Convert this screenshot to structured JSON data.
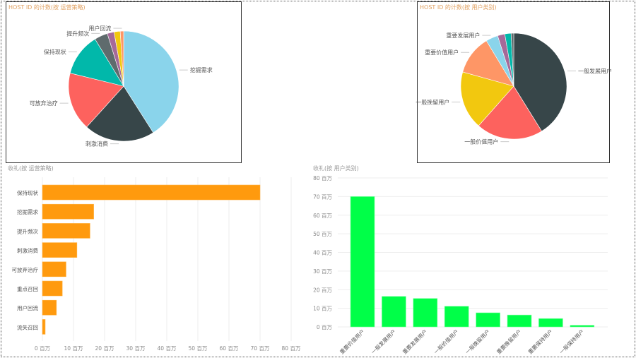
{
  "chart_data": [
    {
      "type": "pie",
      "title": "HOST ID 的计数(按 运营策略)",
      "slices": [
        {
          "label": "挖掘需求",
          "value": 41,
          "color": "#8AD4EB"
        },
        {
          "label": "刺激消费",
          "value": 20.7,
          "color": "#374649"
        },
        {
          "label": "可放弃治疗",
          "value": 17.1,
          "color": "#FD625E"
        },
        {
          "label": "保持现状",
          "value": 12.5,
          "color": "#01B8AA"
        },
        {
          "label": "提升频次",
          "value": 3.9,
          "color": "#5F6B6D"
        },
        {
          "label": "",
          "value": 2,
          "color": "#A66999"
        },
        {
          "label": "",
          "value": 1.8,
          "color": "#F2C80F"
        },
        {
          "label": "用户回流",
          "value": 1,
          "color": "#FE9666"
        }
      ]
    },
    {
      "type": "pie",
      "title": "HOST ID 的计数(按 用户类别)",
      "slices": [
        {
          "label": "一般发展用户",
          "value": 41,
          "color": "#374649"
        },
        {
          "label": "一般价值用户",
          "value": 20.3,
          "color": "#FD625E"
        },
        {
          "label": "一般挽留用户",
          "value": 17.7,
          "color": "#F2C80F"
        },
        {
          "label": "重要价值用户",
          "value": 12,
          "color": "#FE9666"
        },
        {
          "label": "重要发展用户",
          "value": 3.7,
          "color": "#8AD4EB"
        },
        {
          "label": "",
          "value": 2.2,
          "color": "#A66999"
        },
        {
          "label": "",
          "value": 1.9,
          "color": "#01B8AA"
        },
        {
          "label": "",
          "value": 0.8,
          "color": "#5F6B6D"
        }
      ]
    },
    {
      "type": "bar",
      "orientation": "horizontal",
      "title": "收礼(按 运营策略)",
      "categories": [
        "保持现状",
        "挖掘需求",
        "提升频次",
        "刺激消费",
        "可放弃治疗",
        "重点召回",
        "用户回流",
        "流失召回"
      ],
      "values": [
        70,
        16.5,
        15.3,
        11.1,
        7.6,
        6.4,
        4.5,
        0.9
      ],
      "unit": "百万",
      "xlim": [
        0,
        80
      ],
      "ticks": [
        "0 百万",
        "10 百万",
        "20 百万",
        "30 百万",
        "40 百万",
        "50 百万",
        "60 百万",
        "70 百万",
        "80 百万"
      ],
      "color": "#FF9A0E",
      "grid": true
    },
    {
      "type": "bar",
      "orientation": "vertical",
      "title": "收礼(按 用户类别)",
      "categories": [
        "重要价值用户",
        "一般发展用户",
        "重要发展用户",
        "一般价值用户",
        "一般挽留用户",
        "重要挽留用户",
        "重要保持用户",
        "一般保持用户"
      ],
      "values": [
        70,
        16.4,
        15.3,
        11.1,
        7.6,
        6.4,
        4.5,
        0.9
      ],
      "unit": "百万",
      "ylim": [
        0,
        80
      ],
      "ticks": [
        "0 百万",
        "10 百万",
        "20 百万",
        "30 百万",
        "40 百万",
        "50 百万",
        "60 百万",
        "70 百万",
        "80 百万"
      ],
      "color": "#00FF48",
      "grid": true
    }
  ]
}
